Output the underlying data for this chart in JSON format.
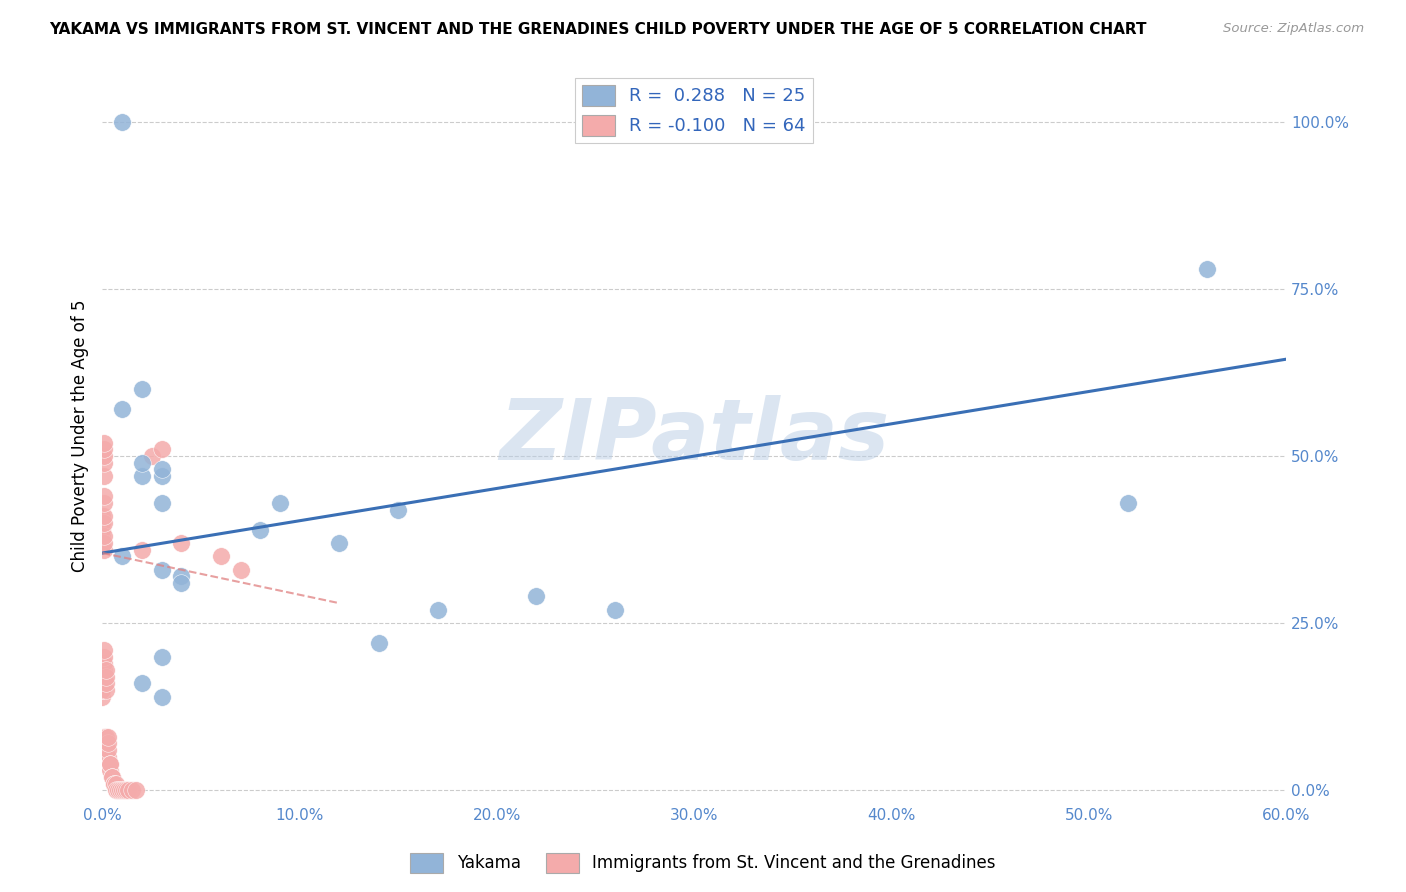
{
  "title": "YAKAMA VS IMMIGRANTS FROM ST. VINCENT AND THE GRENADINES CHILD POVERTY UNDER THE AGE OF 5 CORRELATION CHART",
  "source": "Source: ZipAtlas.com",
  "ylabel": "Child Poverty Under the Age of 5",
  "xlim": [
    0.0,
    0.6
  ],
  "ylim": [
    -0.02,
    1.08
  ],
  "watermark": "ZIPatlas",
  "legend_blue_R": "0.288",
  "legend_blue_N": "25",
  "legend_pink_R": "-0.100",
  "legend_pink_N": "64",
  "blue_color": "#92B4D8",
  "pink_color": "#F4ABAB",
  "trend_blue_color": "#3A6FB5",
  "trend_pink_color": "#E08080",
  "series_blue_label": "Yakama",
  "series_pink_label": "Immigrants from St. Vincent and the Grenadines",
  "yakama_x": [
    0.01,
    0.01,
    0.02,
    0.02,
    0.02,
    0.03,
    0.03,
    0.03,
    0.03,
    0.04,
    0.04,
    0.08,
    0.09,
    0.12,
    0.14,
    0.15,
    0.17,
    0.22,
    0.26,
    0.52,
    0.56,
    0.01,
    0.02,
    0.03,
    0.03
  ],
  "yakama_y": [
    1.0,
    0.57,
    0.6,
    0.47,
    0.49,
    0.47,
    0.48,
    0.43,
    0.33,
    0.32,
    0.31,
    0.39,
    0.43,
    0.37,
    0.22,
    0.42,
    0.27,
    0.29,
    0.27,
    0.43,
    0.78,
    0.35,
    0.16,
    0.14,
    0.2
  ],
  "svg_x": [
    0.0,
    0.0,
    0.0,
    0.0,
    0.0,
    0.0,
    0.0,
    0.0,
    0.0,
    0.0,
    0.001,
    0.001,
    0.001,
    0.001,
    0.001,
    0.001,
    0.001,
    0.001,
    0.001,
    0.001,
    0.001,
    0.001,
    0.001,
    0.001,
    0.001,
    0.001,
    0.001,
    0.001,
    0.001,
    0.002,
    0.002,
    0.002,
    0.002,
    0.002,
    0.002,
    0.002,
    0.003,
    0.003,
    0.003,
    0.003,
    0.003,
    0.004,
    0.004,
    0.004,
    0.005,
    0.005,
    0.006,
    0.006,
    0.007,
    0.007,
    0.008,
    0.009,
    0.01,
    0.011,
    0.012,
    0.013,
    0.015,
    0.017,
    0.02,
    0.025,
    0.03,
    0.04,
    0.06,
    0.07
  ],
  "svg_y": [
    0.37,
    0.38,
    0.39,
    0.4,
    0.4,
    0.41,
    0.14,
    0.15,
    0.15,
    0.5,
    0.36,
    0.37,
    0.38,
    0.4,
    0.41,
    0.43,
    0.44,
    0.47,
    0.49,
    0.5,
    0.51,
    0.52,
    0.17,
    0.18,
    0.19,
    0.2,
    0.21,
    0.07,
    0.08,
    0.15,
    0.16,
    0.17,
    0.18,
    0.06,
    0.07,
    0.08,
    0.04,
    0.05,
    0.06,
    0.07,
    0.08,
    0.03,
    0.04,
    0.04,
    0.02,
    0.02,
    0.01,
    0.01,
    0.01,
    0.0,
    0.0,
    0.0,
    0.0,
    0.0,
    0.0,
    0.0,
    0.0,
    0.0,
    0.36,
    0.5,
    0.51,
    0.37,
    0.35,
    0.33
  ],
  "trend_blue_x0": 0.0,
  "trend_blue_y0": 0.355,
  "trend_blue_x1": 0.6,
  "trend_blue_y1": 0.645,
  "trend_pink_x0": 0.0,
  "trend_pink_y0": 0.355,
  "trend_pink_x1": 0.12,
  "trend_pink_y1": 0.28,
  "ytick_vals": [
    0.0,
    0.25,
    0.5,
    0.75,
    1.0
  ],
  "ytick_labels": [
    "0.0%",
    "25.0%",
    "50.0%",
    "75.0%",
    "100.0%"
  ],
  "xtick_vals": [
    0.0,
    0.1,
    0.2,
    0.3,
    0.4,
    0.5,
    0.6
  ],
  "xtick_labels": [
    "0.0%",
    "10.0%",
    "20.0%",
    "30.0%",
    "40.0%",
    "50.0%",
    "60.0%"
  ]
}
